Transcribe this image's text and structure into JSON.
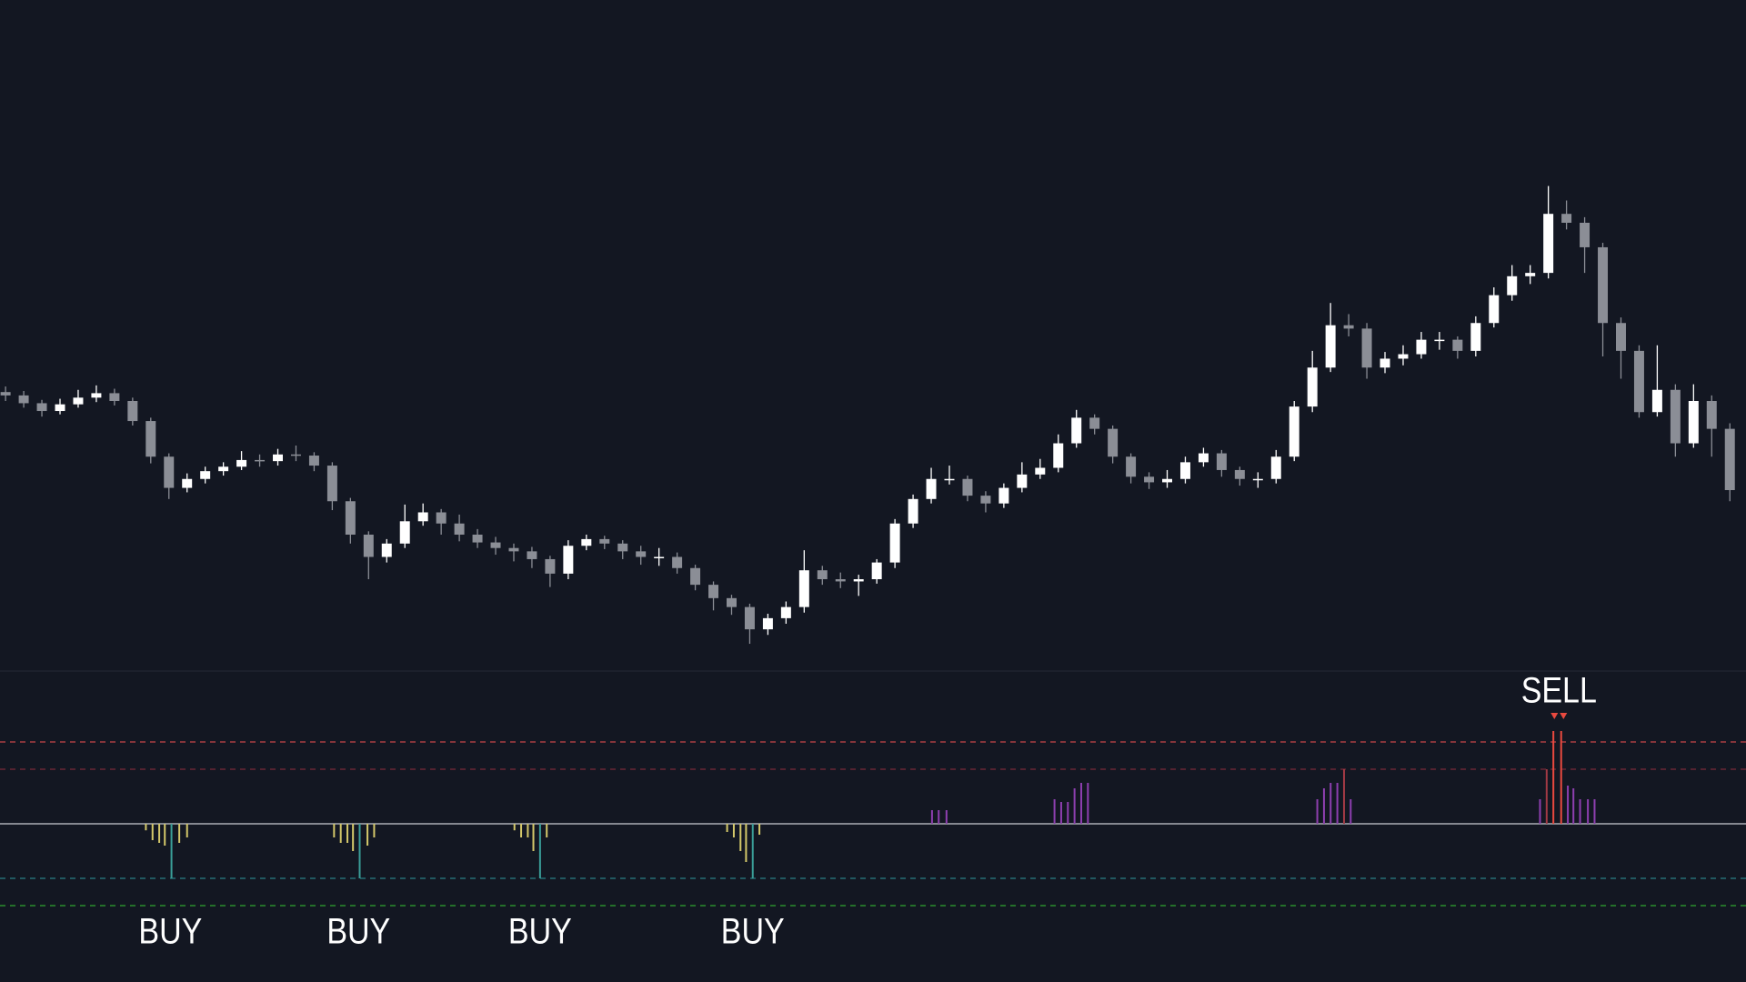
{
  "chart_data": {
    "type": "candlestick",
    "xlim": [
      0,
      1568
    ],
    "ylim": [
      100,
      700
    ],
    "up_color": "#ffffff",
    "down_color": "#8b8e96",
    "x": [
      5,
      21.3,
      37.6,
      53.9,
      70.2,
      86.5,
      102.8,
      119.1,
      135.4,
      151.7,
      168,
      184.3,
      200.6,
      216.9,
      233.2,
      249.5,
      265.8,
      282.1,
      298.4,
      314.7,
      331,
      347.3,
      363.6,
      379.9,
      396.2,
      412.5,
      428.8,
      445.1,
      461.4,
      477.7,
      494,
      510.3,
      526.6,
      542.9,
      559.2,
      575.5,
      591.8,
      608.1,
      624.4,
      640.7,
      657,
      673.3,
      689.6,
      705.9,
      722.2,
      738.5,
      754.8,
      771.1,
      787.4,
      803.7,
      820,
      836.3,
      852.6,
      868.9,
      885.2,
      901.5,
      917.8,
      934.1,
      950.4,
      966.7,
      983,
      999.3,
      1015.6,
      1031.9,
      1048.2,
      1064.5,
      1080.8,
      1097.1,
      1113.4,
      1129.7,
      1146,
      1162.3,
      1178.6,
      1194.9,
      1211.2,
      1227.5,
      1243.8,
      1260.1,
      1276.4,
      1292.7,
      1309,
      1325.3,
      1341.6,
      1357.9,
      1374.2,
      1390.5,
      1406.8,
      1423.1,
      1439.4,
      1455.7,
      1472,
      1488.3,
      1504.6,
      1520.9,
      1537.2,
      1553.5
    ],
    "open": [
      348,
      345,
      338,
      331,
      337,
      343,
      347,
      340,
      322,
      290,
      262,
      270,
      277,
      281,
      287,
      286,
      292,
      291,
      282,
      250,
      220,
      200,
      212,
      232,
      240,
      230,
      220,
      213,
      208,
      205,
      198,
      185,
      210,
      216,
      212,
      205,
      200,
      200,
      190,
      175,
      163,
      155,
      135,
      145,
      155,
      188,
      180,
      178,
      180,
      195,
      230,
      252,
      270,
      270,
      255,
      248,
      262,
      274,
      280,
      302,
      325,
      315,
      290,
      272,
      267,
      270,
      285,
      293,
      278,
      270,
      270,
      290,
      335,
      370,
      408,
      405,
      370,
      378,
      382,
      395,
      395,
      385,
      410,
      435,
      452,
      455,
      508,
      500,
      478,
      410,
      385,
      330,
      350,
      302,
      340,
      315
    ],
    "high": [
      353,
      349,
      341,
      342,
      350,
      354,
      351,
      343,
      325,
      293,
      275,
      281,
      285,
      295,
      292,
      297,
      300,
      294,
      285,
      253,
      223,
      216,
      247,
      248,
      243,
      238,
      225,
      218,
      212,
      209,
      201,
      215,
      220,
      219,
      215,
      210,
      208,
      204,
      193,
      178,
      166,
      158,
      149,
      160,
      206,
      192,
      186,
      184,
      198,
      234,
      256,
      280,
      282,
      273,
      259,
      266,
      285,
      288,
      310,
      332,
      328,
      318,
      293,
      276,
      278,
      290,
      298,
      296,
      281,
      276,
      296,
      340,
      385,
      428,
      418,
      410,
      384,
      390,
      402,
      402,
      398,
      416,
      442,
      462,
      462,
      533,
      520,
      505,
      482,
      415,
      390,
      390,
      355,
      355,
      345,
      320
    ],
    "low": [
      340,
      334,
      326,
      328,
      334,
      339,
      336,
      318,
      284,
      252,
      258,
      266,
      273,
      278,
      281,
      282,
      286,
      277,
      242,
      212,
      180,
      195,
      208,
      228,
      220,
      214,
      208,
      202,
      196,
      190,
      173,
      180,
      206,
      207,
      198,
      193,
      192,
      185,
      170,
      152,
      148,
      122,
      130,
      140,
      150,
      175,
      172,
      165,
      176,
      190,
      226,
      248,
      265,
      250,
      240,
      244,
      258,
      270,
      276,
      298,
      310,
      284,
      266,
      261,
      262,
      266,
      281,
      272,
      264,
      262,
      266,
      286,
      330,
      366,
      398,
      360,
      365,
      372,
      378,
      386,
      378,
      380,
      406,
      430,
      445,
      450,
      494,
      455,
      380,
      360,
      325,
      326,
      290,
      298,
      290,
      250
    ],
    "close": [
      345,
      338,
      331,
      337,
      343,
      347,
      340,
      322,
      290,
      262,
      270,
      277,
      281,
      287,
      286,
      292,
      291,
      282,
      250,
      220,
      200,
      212,
      232,
      240,
      230,
      220,
      213,
      208,
      205,
      198,
      185,
      210,
      216,
      212,
      205,
      200,
      200,
      190,
      175,
      163,
      155,
      135,
      145,
      155,
      188,
      180,
      178,
      180,
      195,
      230,
      252,
      270,
      270,
      255,
      248,
      262,
      274,
      280,
      302,
      325,
      315,
      290,
      272,
      267,
      270,
      285,
      293,
      278,
      270,
      270,
      290,
      335,
      370,
      408,
      405,
      370,
      378,
      382,
      395,
      395,
      385,
      410,
      435,
      452,
      455,
      508,
      500,
      478,
      410,
      385,
      330,
      350,
      302,
      340,
      315,
      260
    ],
    "histogram": {
      "ylim": [
        -290,
        280
      ],
      "x": [
        131,
        137,
        143,
        148,
        154,
        161,
        168,
        300,
        306,
        312,
        317,
        323,
        330,
        336,
        462,
        468,
        474,
        479,
        485,
        491,
        653,
        659,
        665,
        670,
        676,
        682,
        837,
        843,
        850,
        947,
        953,
        959,
        965,
        971,
        977,
        1183,
        1189,
        1195,
        1201,
        1207,
        1213,
        1383,
        1389,
        1395,
        1402,
        1408,
        1413,
        1419,
        1426,
        1432
      ],
      "values": [
        -12,
        -30,
        -35,
        -40,
        -100,
        -35,
        -25,
        -25,
        -35,
        -35,
        -50,
        -100,
        -40,
        -25,
        -12,
        -25,
        -25,
        -50,
        -100,
        -25,
        -15,
        -25,
        -50,
        -70,
        -100,
        -20,
        25,
        25,
        25,
        45,
        40,
        40,
        65,
        75,
        75,
        45,
        65,
        75,
        75,
        100,
        45,
        45,
        100,
        170,
        170,
        70,
        65,
        45,
        45,
        45
      ],
      "colors": [
        "#d4c86a",
        "#d4c86a",
        "#d4c86a",
        "#d4c86a",
        "#3a9e98",
        "#d4c86a",
        "#d4c86a",
        "#d4c86a",
        "#d4c86a",
        "#d4c86a",
        "#d4c86a",
        "#3a9e98",
        "#d4c86a",
        "#d4c86a",
        "#d4c86a",
        "#d4c86a",
        "#d4c86a",
        "#d4c86a",
        "#3a9e98",
        "#d4c86a",
        "#d4c86a",
        "#d4c86a",
        "#d4c86a",
        "#d4c86a",
        "#3a9e98",
        "#d4c86a",
        "#8e3fb0",
        "#8e3fb0",
        "#8e3fb0",
        "#8e3fb0",
        "#8e3fb0",
        "#8e3fb0",
        "#8e3fb0",
        "#8e3fb0",
        "#8e3fb0",
        "#8e3fb0",
        "#8e3fb0",
        "#8e3fb0",
        "#8e3fb0",
        "#a23a45",
        "#8e3fb0",
        "#8e3fb0",
        "#a23a45",
        "#e8493f",
        "#e8493f",
        "#8e3fb0",
        "#8e3fb0",
        "#8e3fb0",
        "#8e3fb0",
        "#8e3fb0"
      ],
      "levels": [
        150,
        100,
        -100,
        -150
      ],
      "level_colors": [
        "#c8454a",
        "#7a2a38",
        "#2a7f86",
        "#2fa52f"
      ]
    },
    "annotations": [
      {
        "text": "BUY",
        "x": 153,
        "position": "below"
      },
      {
        "text": "BUY",
        "x": 322,
        "position": "below"
      },
      {
        "text": "BUY",
        "x": 485,
        "position": "below"
      },
      {
        "text": "BUY",
        "x": 676,
        "position": "below"
      },
      {
        "text": "SELL",
        "x": 1400,
        "position": "above"
      }
    ]
  }
}
